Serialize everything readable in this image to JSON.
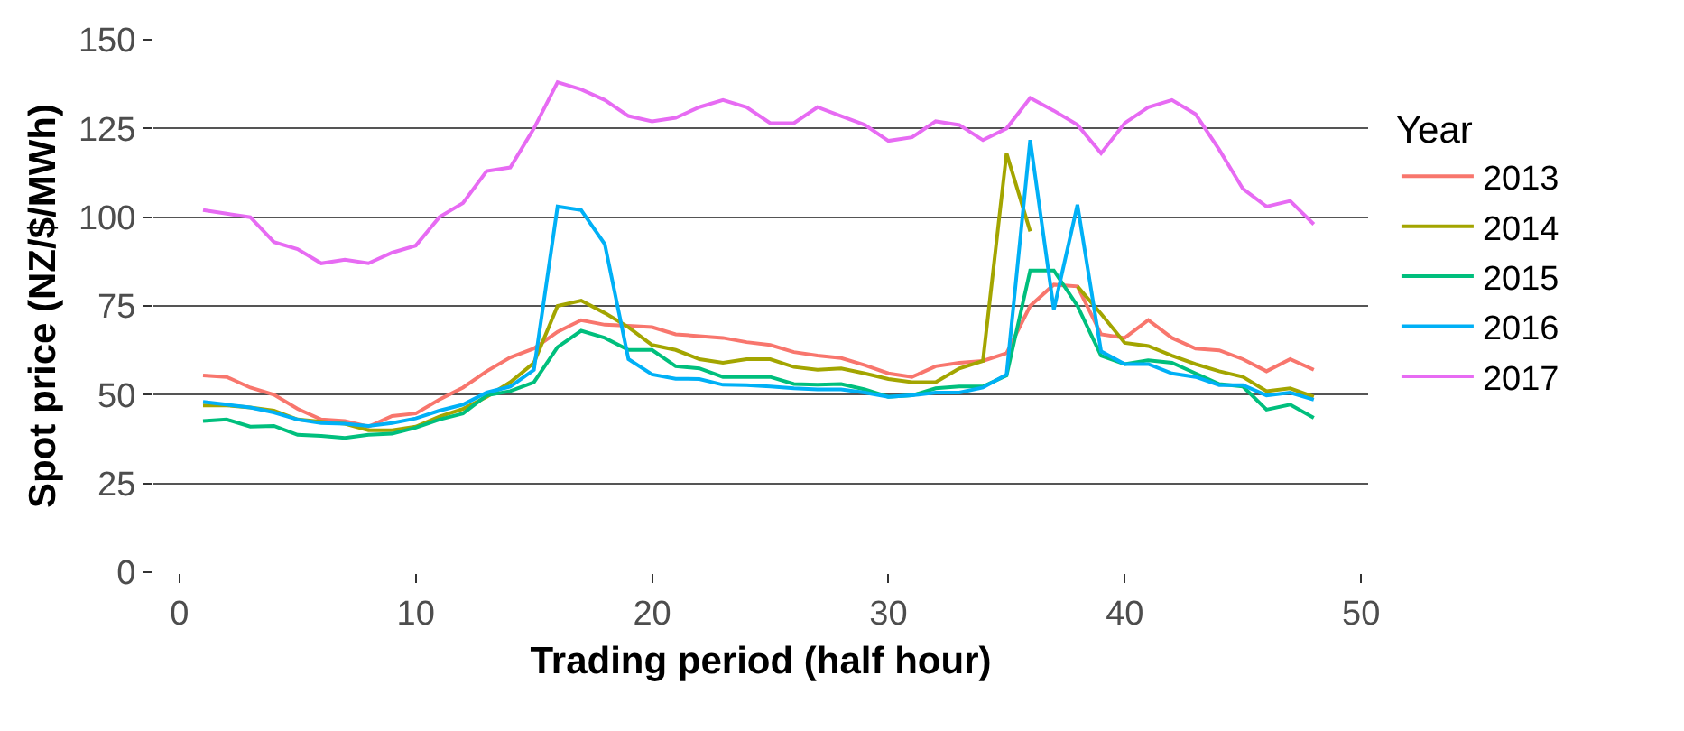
{
  "chart_data": {
    "type": "line",
    "xlabel": "Trading period (half hour)",
    "ylabel": "Spot price (NZ/$/MWh)",
    "legend_title": "Year",
    "legend": "right",
    "grid": "y",
    "line_style": "solid",
    "marker": "none",
    "x": [
      1,
      2,
      3,
      4,
      5,
      6,
      7,
      8,
      9,
      10,
      11,
      12,
      13,
      14,
      15,
      16,
      17,
      18,
      19,
      20,
      21,
      22,
      23,
      24,
      25,
      26,
      27,
      28,
      29,
      30,
      31,
      32,
      33,
      34,
      35,
      36,
      37,
      38,
      39,
      40,
      41,
      42,
      43,
      44,
      45,
      46,
      47,
      48
    ],
    "xlim": [
      -1.1,
      50.3
    ],
    "xticks": [
      0,
      10,
      20,
      30,
      40,
      50
    ],
    "ylim": [
      0,
      150
    ],
    "yticks": [
      0,
      25,
      50,
      75,
      100,
      125,
      150
    ],
    "series": [
      {
        "name": "2013",
        "color": "#f8766d",
        "values": [
          55.4,
          55,
          52,
          50,
          46,
          43,
          42.6,
          41,
          44,
          44.7,
          48.6,
          52,
          56.6,
          60.5,
          63,
          67.7,
          71,
          69.7,
          69.4,
          69,
          67,
          66.5,
          66,
          64.8,
          64,
          62,
          61,
          60.3,
          58.3,
          56,
          55,
          58,
          59,
          59.5,
          61.7,
          75,
          81,
          80.5,
          67,
          66,
          71,
          66,
          63,
          62.5,
          60,
          56.6,
          60,
          57
        ]
      },
      {
        "name": "2014",
        "color": "#a3a500",
        "values": [
          47,
          47,
          46.4,
          45.5,
          43,
          42.4,
          41.8,
          40,
          40,
          41,
          43.8,
          46,
          49.4,
          53.5,
          59,
          75,
          76.5,
          73,
          69,
          64,
          62.6,
          60,
          59,
          60,
          60,
          57.8,
          57,
          57.4,
          56,
          54.4,
          53.5,
          53.5,
          57.4,
          59.5,
          118,
          96,
          null,
          80.5,
          72.8,
          64.6,
          63.7,
          61,
          58.6,
          56.6,
          55,
          51,
          51.8,
          49.4
        ]
      },
      {
        "name": "2015",
        "color": "#00bf7d",
        "values": [
          42.6,
          43,
          41,
          41.2,
          38.7,
          38.4,
          37.8,
          38.7,
          39,
          40.7,
          43,
          44.7,
          49.8,
          51,
          53.5,
          63.4,
          68,
          66,
          62.6,
          62.6,
          58,
          57.4,
          55,
          55,
          55,
          53,
          52.8,
          53,
          51.5,
          49.4,
          49.8,
          51.8,
          52.3,
          52.3,
          55.4,
          85,
          85,
          75,
          61,
          58.6,
          59.7,
          59,
          56,
          53,
          52.3,
          45.8,
          47.2,
          43.5
        ]
      },
      {
        "name": "2016",
        "color": "#00b0f6",
        "values": [
          48,
          47.2,
          46.4,
          45,
          43,
          42,
          41.8,
          41.2,
          42,
          43.3,
          45.5,
          47.2,
          50.6,
          52.3,
          57,
          103,
          102,
          92.4,
          60,
          55.7,
          54.5,
          54.4,
          52.8,
          52.7,
          52.3,
          51.8,
          51.5,
          51.5,
          50.6,
          49.4,
          49.8,
          50.6,
          50.6,
          52,
          55.7,
          121.7,
          74,
          103.5,
          62.2,
          58.6,
          58.6,
          56,
          55,
          52.7,
          52.7,
          49.8,
          50.6,
          48.6
        ]
      },
      {
        "name": "2017",
        "color": "#e76bf3",
        "values": [
          102,
          101,
          100,
          93,
          91,
          87,
          88,
          87,
          90,
          92,
          100,
          104,
          113,
          114,
          125,
          138,
          136,
          133,
          128.5,
          127,
          128,
          131,
          133,
          131,
          126.5,
          126.5,
          131,
          128.5,
          126,
          121.5,
          122.5,
          127,
          126,
          121.7,
          125,
          133.6,
          130,
          126,
          118,
          126.5,
          131,
          133,
          129,
          119,
          108,
          103,
          104.6,
          98
        ]
      }
    ]
  }
}
